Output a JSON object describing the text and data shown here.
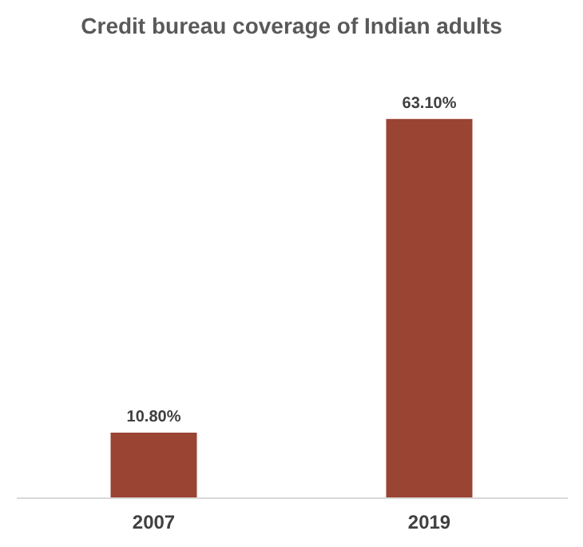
{
  "chart_data": {
    "type": "bar",
    "title": "Credit bureau coverage of Indian adults",
    "categories": [
      "2007",
      "2019"
    ],
    "values": [
      10.8,
      63.1
    ],
    "value_labels": [
      "10.80%",
      "63.10%"
    ],
    "color": "#9a4434",
    "grid": false
  }
}
